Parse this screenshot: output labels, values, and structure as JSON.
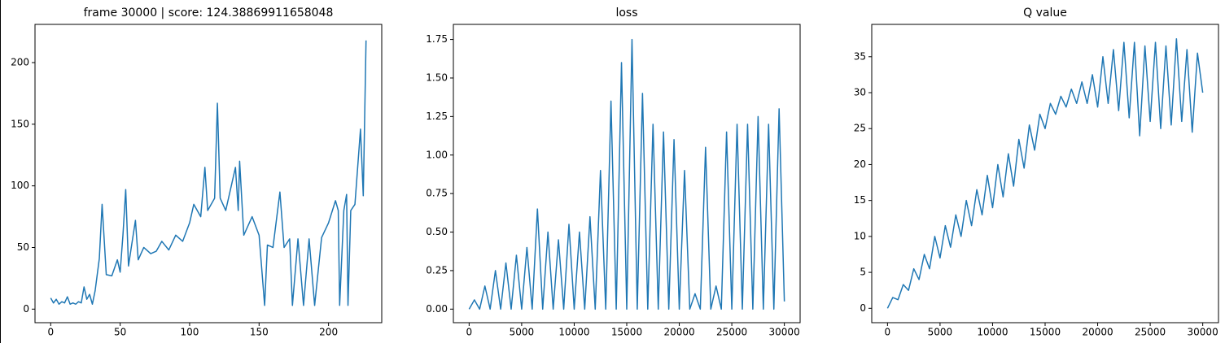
{
  "chart_data": [
    {
      "type": "line",
      "title": "frame 30000 | score: 124.38869911658048",
      "color": "#1f77b4",
      "x": [
        0,
        2,
        4,
        6,
        8,
        10,
        12,
        14,
        16,
        18,
        20,
        22,
        24,
        26,
        28,
        30,
        32,
        35,
        37,
        40,
        44,
        48,
        50,
        52,
        54,
        56,
        58,
        61,
        63,
        67,
        72,
        76,
        80,
        85,
        90,
        95,
        100,
        103,
        108,
        111,
        113,
        118,
        120,
        122,
        126,
        130,
        133,
        135,
        136,
        139,
        145,
        150,
        154,
        156,
        160,
        165,
        168,
        172,
        174,
        178,
        182,
        186,
        190,
        195,
        200,
        205,
        207,
        208,
        211,
        213,
        214,
        216,
        219,
        223,
        225,
        227
      ],
      "values": [
        9,
        5,
        8,
        4,
        6,
        5,
        10,
        4,
        5,
        4,
        6,
        5,
        18,
        8,
        12,
        4,
        15,
        41,
        85,
        28,
        27,
        40,
        30,
        60,
        97,
        35,
        50,
        72,
        40,
        50,
        45,
        47,
        55,
        48,
        60,
        55,
        70,
        85,
        75,
        115,
        80,
        90,
        167,
        90,
        80,
        100,
        115,
        80,
        120,
        60,
        75,
        60,
        3,
        52,
        50,
        95,
        50,
        57,
        3,
        57,
        3,
        57,
        3,
        58,
        70,
        88,
        80,
        3,
        80,
        93,
        3,
        80,
        85,
        146,
        92,
        218
      ],
      "xlim": [
        -11.3,
        238.3
      ],
      "ylim": [
        -11,
        231
      ],
      "xticks": [
        0,
        50,
        100,
        150,
        200
      ],
      "yticks": [
        0,
        50,
        100,
        150,
        200
      ]
    },
    {
      "type": "line",
      "title": "loss",
      "color": "#1f77b4",
      "x": [
        0,
        500,
        1000,
        1500,
        2000,
        2500,
        3000,
        3500,
        4000,
        4500,
        5000,
        5500,
        6000,
        6500,
        7000,
        7500,
        8000,
        8500,
        9000,
        9500,
        10000,
        10500,
        11000,
        11500,
        12000,
        12500,
        13000,
        13500,
        14000,
        14500,
        15000,
        15500,
        16000,
        16500,
        17000,
        17500,
        18000,
        18500,
        19000,
        19500,
        20000,
        20500,
        21000,
        21500,
        22000,
        22500,
        23000,
        23500,
        24000,
        24500,
        25000,
        25500,
        26000,
        26500,
        27000,
        27500,
        28000,
        28500,
        29000,
        29500,
        30000
      ],
      "values": [
        0,
        0.06,
        0,
        0.15,
        0,
        0.25,
        0,
        0.3,
        0,
        0.35,
        0,
        0.4,
        0,
        0.65,
        0,
        0.5,
        0,
        0.45,
        0,
        0.55,
        0,
        0.5,
        0,
        0.6,
        0,
        0.9,
        0,
        1.35,
        0,
        1.6,
        0,
        1.75,
        0,
        1.4,
        0,
        1.2,
        0,
        1.15,
        0,
        1.1,
        0,
        0.9,
        0,
        0.1,
        0,
        1.05,
        0,
        0.15,
        0,
        1.15,
        0,
        1.2,
        0,
        1.2,
        0,
        1.25,
        0,
        1.2,
        0,
        1.3,
        0.05
      ],
      "xlim": [
        -1500,
        31500
      ],
      "ylim": [
        -0.088,
        1.848
      ],
      "xticks": [
        0,
        5000,
        10000,
        15000,
        20000,
        25000,
        30000
      ],
      "yticks": [
        {
          "value": 0,
          "label": "0.00"
        },
        {
          "value": 0.25,
          "label": "0.25"
        },
        {
          "value": 0.5,
          "label": "0.50"
        },
        {
          "value": 0.75,
          "label": "0.75"
        },
        {
          "value": 1,
          "label": "1.00"
        },
        {
          "value": 1.25,
          "label": "1.25"
        },
        {
          "value": 1.5,
          "label": "1.50"
        },
        {
          "value": 1.75,
          "label": "1.75"
        }
      ]
    },
    {
      "type": "line",
      "title": "Q value",
      "color": "#1f77b4",
      "x": [
        0,
        500,
        1000,
        1500,
        2000,
        2500,
        3000,
        3500,
        4000,
        4500,
        5000,
        5500,
        6000,
        6500,
        7000,
        7500,
        8000,
        8500,
        9000,
        9500,
        10000,
        10500,
        11000,
        11500,
        12000,
        12500,
        13000,
        13500,
        14000,
        14500,
        15000,
        15500,
        16000,
        16500,
        17000,
        17500,
        18000,
        18500,
        19000,
        19500,
        20000,
        20500,
        21000,
        21500,
        22000,
        22500,
        23000,
        23500,
        24000,
        24500,
        25000,
        25500,
        26000,
        26500,
        27000,
        27500,
        28000,
        28500,
        29000,
        29500,
        30000
      ],
      "values": [
        0,
        1.5,
        1.2,
        3.3,
        2.5,
        5.5,
        4,
        7.5,
        5.5,
        10,
        7,
        11.5,
        8.5,
        13,
        10,
        15,
        11.5,
        16.5,
        13,
        18.5,
        14,
        20,
        15.5,
        21.5,
        17,
        23.5,
        19.5,
        25.5,
        22,
        27,
        25,
        28.5,
        27,
        29.5,
        28,
        30.5,
        28.5,
        31.5,
        28.5,
        32.5,
        28,
        35,
        28.5,
        36,
        27.5,
        37,
        26.5,
        37,
        24,
        36.5,
        26,
        37,
        25,
        36.5,
        25.5,
        37.5,
        26,
        36,
        24.5,
        35.5,
        30
      ],
      "xlim": [
        -1500,
        31500
      ],
      "ylim": [
        -2,
        39.5
      ],
      "xticks": [
        0,
        5000,
        10000,
        15000,
        20000,
        25000,
        30000
      ],
      "yticks": [
        0,
        5,
        10,
        15,
        20,
        25,
        30,
        35
      ]
    }
  ]
}
